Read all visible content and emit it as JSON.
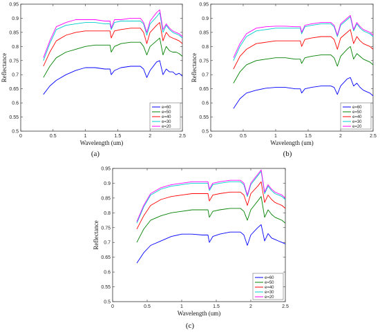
{
  "chart_data": [
    {
      "panel": "(a)",
      "type": "line",
      "xlabel": "Wavelength (um)",
      "ylabel": "Reflectance",
      "xlim": [
        0,
        2.5
      ],
      "ylim": [
        0.5,
        0.95
      ],
      "xticks": [
        "0",
        "0.5",
        "1",
        "1.5",
        "2",
        "2.5"
      ],
      "yticks": [
        "0.5",
        "0.55",
        "0.6",
        "0.65",
        "0.7",
        "0.75",
        "0.8",
        "0.85",
        "0.9",
        "0.95"
      ],
      "legend_position": "bottom-right",
      "x": [
        0.35,
        0.45,
        0.55,
        0.7,
        0.85,
        1.0,
        1.15,
        1.3,
        1.38,
        1.4,
        1.45,
        1.55,
        1.7,
        1.85,
        1.9,
        1.95,
        2.0,
        2.1,
        2.15,
        2.2,
        2.25,
        2.3,
        2.35,
        2.4,
        2.45,
        2.5
      ],
      "series": [
        {
          "name": "e=60",
          "color": "#0000ff",
          "values": [
            0.63,
            0.66,
            0.68,
            0.7,
            0.715,
            0.725,
            0.725,
            0.72,
            0.72,
            0.7,
            0.715,
            0.725,
            0.73,
            0.73,
            0.72,
            0.69,
            0.715,
            0.745,
            0.75,
            0.7,
            0.72,
            0.71,
            0.71,
            0.7,
            0.705,
            0.695
          ]
        },
        {
          "name": "e=50",
          "color": "#008000",
          "values": [
            0.69,
            0.73,
            0.76,
            0.78,
            0.79,
            0.8,
            0.805,
            0.805,
            0.805,
            0.78,
            0.8,
            0.81,
            0.815,
            0.815,
            0.8,
            0.77,
            0.8,
            0.82,
            0.83,
            0.77,
            0.8,
            0.785,
            0.78,
            0.78,
            0.775,
            0.765
          ]
        },
        {
          "name": "e=40",
          "color": "#ff0000",
          "values": [
            0.73,
            0.78,
            0.82,
            0.84,
            0.85,
            0.855,
            0.855,
            0.855,
            0.855,
            0.83,
            0.855,
            0.86,
            0.865,
            0.865,
            0.85,
            0.81,
            0.85,
            0.875,
            0.885,
            0.82,
            0.85,
            0.835,
            0.83,
            0.825,
            0.82,
            0.81
          ]
        },
        {
          "name": "e=30",
          "color": "#00cccc",
          "values": [
            0.75,
            0.81,
            0.86,
            0.875,
            0.88,
            0.885,
            0.885,
            0.88,
            0.88,
            0.86,
            0.885,
            0.89,
            0.89,
            0.89,
            0.88,
            0.84,
            0.88,
            0.905,
            0.92,
            0.85,
            0.875,
            0.86,
            0.85,
            0.845,
            0.84,
            0.83
          ]
        },
        {
          "name": "e=20",
          "color": "#ff00ff",
          "values": [
            0.76,
            0.82,
            0.87,
            0.885,
            0.895,
            0.895,
            0.895,
            0.89,
            0.89,
            0.865,
            0.895,
            0.895,
            0.9,
            0.9,
            0.885,
            0.85,
            0.89,
            0.92,
            0.93,
            0.86,
            0.88,
            0.865,
            0.855,
            0.85,
            0.845,
            0.835
          ]
        }
      ]
    },
    {
      "panel": "(b)",
      "type": "line",
      "xlabel": "Wavelength (um)",
      "ylabel": "Reflectance",
      "xlim": [
        0,
        2.5
      ],
      "ylim": [
        0.5,
        0.95
      ],
      "xticks": [
        "0",
        "0.5",
        "1",
        "1.5",
        "2",
        "2.5"
      ],
      "yticks": [
        "0.5",
        "0.55",
        "0.6",
        "0.65",
        "0.7",
        "0.75",
        "0.8",
        "0.85",
        "0.9",
        "0.95"
      ],
      "legend_position": "bottom-right",
      "x": [
        0.35,
        0.45,
        0.55,
        0.7,
        0.85,
        1.0,
        1.15,
        1.3,
        1.38,
        1.4,
        1.45,
        1.55,
        1.7,
        1.85,
        1.9,
        1.95,
        2.0,
        2.1,
        2.15,
        2.2,
        2.25,
        2.3,
        2.35,
        2.4,
        2.45,
        2.5
      ],
      "series": [
        {
          "name": "e=60",
          "color": "#0000ff",
          "values": [
            0.58,
            0.615,
            0.635,
            0.645,
            0.652,
            0.655,
            0.655,
            0.65,
            0.65,
            0.635,
            0.65,
            0.655,
            0.66,
            0.66,
            0.655,
            0.63,
            0.66,
            0.685,
            0.69,
            0.66,
            0.67,
            0.655,
            0.645,
            0.64,
            0.635,
            0.625
          ]
        },
        {
          "name": "e=50",
          "color": "#008000",
          "values": [
            0.67,
            0.71,
            0.735,
            0.75,
            0.755,
            0.76,
            0.76,
            0.755,
            0.755,
            0.74,
            0.76,
            0.765,
            0.77,
            0.77,
            0.76,
            0.73,
            0.765,
            0.79,
            0.8,
            0.755,
            0.775,
            0.765,
            0.755,
            0.75,
            0.745,
            0.735
          ]
        },
        {
          "name": "e=40",
          "color": "#ff0000",
          "values": [
            0.72,
            0.765,
            0.79,
            0.81,
            0.815,
            0.82,
            0.82,
            0.82,
            0.82,
            0.8,
            0.825,
            0.83,
            0.835,
            0.835,
            0.825,
            0.79,
            0.83,
            0.85,
            0.86,
            0.81,
            0.835,
            0.82,
            0.81,
            0.805,
            0.8,
            0.79
          ]
        },
        {
          "name": "e=30",
          "color": "#00cccc",
          "values": [
            0.75,
            0.8,
            0.835,
            0.855,
            0.86,
            0.865,
            0.865,
            0.865,
            0.865,
            0.845,
            0.87,
            0.875,
            0.88,
            0.88,
            0.87,
            0.835,
            0.875,
            0.895,
            0.905,
            0.855,
            0.88,
            0.865,
            0.855,
            0.85,
            0.845,
            0.835
          ]
        },
        {
          "name": "e=20",
          "color": "#ff00ff",
          "values": [
            0.76,
            0.81,
            0.845,
            0.865,
            0.87,
            0.872,
            0.872,
            0.87,
            0.87,
            0.85,
            0.875,
            0.88,
            0.885,
            0.885,
            0.875,
            0.84,
            0.88,
            0.9,
            0.91,
            0.86,
            0.885,
            0.87,
            0.86,
            0.855,
            0.85,
            0.84
          ]
        }
      ]
    },
    {
      "panel": "(c)",
      "type": "line",
      "xlabel": "Wavelength (um)",
      "ylabel": "Reflectance",
      "xlim": [
        0,
        2.5
      ],
      "ylim": [
        0.5,
        0.95
      ],
      "xticks": [
        "0",
        "0.5",
        "1",
        "1.5",
        "2",
        "2.5"
      ],
      "yticks": [
        "0.5",
        "0.55",
        "0.6",
        "0.65",
        "0.7",
        "0.75",
        "0.8",
        "0.85",
        "0.9",
        "0.95"
      ],
      "legend_position": "bottom-right",
      "x": [
        0.35,
        0.45,
        0.55,
        0.7,
        0.85,
        1.0,
        1.15,
        1.3,
        1.38,
        1.4,
        1.45,
        1.55,
        1.7,
        1.85,
        1.9,
        1.95,
        2.0,
        2.1,
        2.15,
        2.2,
        2.25,
        2.3,
        2.35,
        2.4,
        2.45,
        2.5
      ],
      "series": [
        {
          "name": "e=60",
          "color": "#0000ff",
          "values": [
            0.63,
            0.665,
            0.69,
            0.705,
            0.72,
            0.728,
            0.728,
            0.725,
            0.725,
            0.7,
            0.72,
            0.728,
            0.735,
            0.735,
            0.725,
            0.69,
            0.725,
            0.75,
            0.76,
            0.705,
            0.73,
            0.715,
            0.71,
            0.705,
            0.7,
            0.695
          ]
        },
        {
          "name": "e=50",
          "color": "#008000",
          "values": [
            0.7,
            0.745,
            0.775,
            0.79,
            0.8,
            0.805,
            0.81,
            0.81,
            0.81,
            0.785,
            0.805,
            0.81,
            0.815,
            0.815,
            0.805,
            0.775,
            0.81,
            0.84,
            0.855,
            0.785,
            0.81,
            0.795,
            0.785,
            0.78,
            0.775,
            0.765
          ]
        },
        {
          "name": "e=40",
          "color": "#ff0000",
          "values": [
            0.745,
            0.79,
            0.825,
            0.845,
            0.855,
            0.86,
            0.865,
            0.865,
            0.865,
            0.84,
            0.86,
            0.865,
            0.87,
            0.87,
            0.86,
            0.825,
            0.865,
            0.89,
            0.905,
            0.835,
            0.86,
            0.845,
            0.835,
            0.83,
            0.825,
            0.815
          ]
        },
        {
          "name": "e=30",
          "color": "#00cccc",
          "values": [
            0.765,
            0.82,
            0.86,
            0.88,
            0.89,
            0.895,
            0.9,
            0.9,
            0.9,
            0.875,
            0.895,
            0.9,
            0.905,
            0.905,
            0.895,
            0.855,
            0.895,
            0.925,
            0.94,
            0.865,
            0.89,
            0.875,
            0.865,
            0.86,
            0.855,
            0.845
          ]
        },
        {
          "name": "e=20",
          "color": "#ff00ff",
          "values": [
            0.77,
            0.825,
            0.865,
            0.885,
            0.895,
            0.9,
            0.905,
            0.905,
            0.905,
            0.88,
            0.9,
            0.905,
            0.91,
            0.91,
            0.9,
            0.86,
            0.9,
            0.93,
            0.945,
            0.87,
            0.895,
            0.88,
            0.87,
            0.865,
            0.86,
            0.85
          ]
        }
      ]
    }
  ]
}
